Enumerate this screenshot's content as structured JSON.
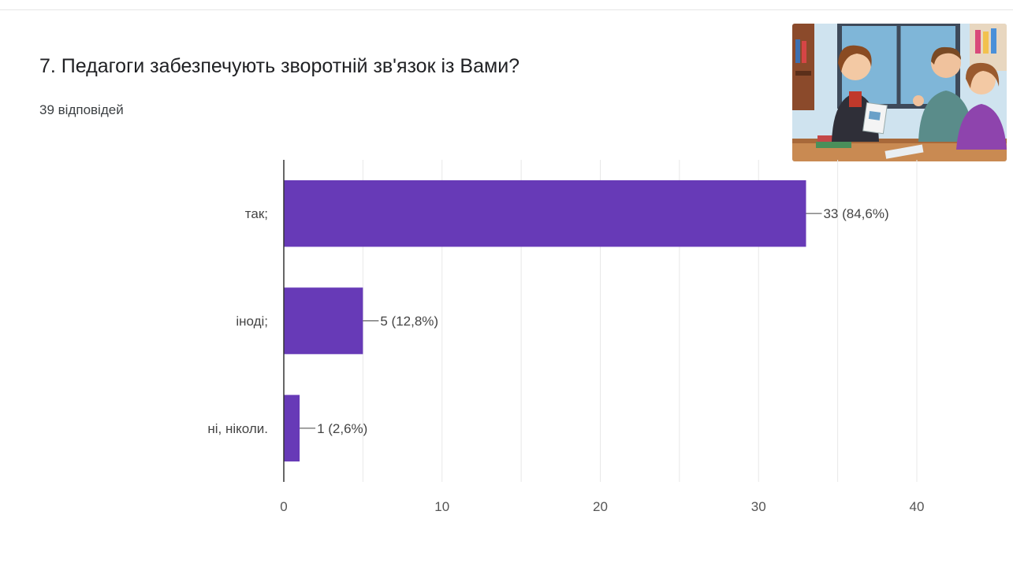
{
  "question": {
    "title": "7. Педагоги забезпечують зворотній зв'язок із Вами?",
    "responses": "39 відповідей"
  },
  "colors": {
    "bar": "#673ab7",
    "grid": "#e8e8e8",
    "axis": "#333333",
    "label": "#444444",
    "tick": "#555555"
  },
  "chart_data": {
    "type": "bar",
    "orientation": "horizontal",
    "categories": [
      "так;",
      "іноді;",
      "ні, ніколи."
    ],
    "values": [
      33,
      5,
      1
    ],
    "data_labels": [
      "33 (84,6%)",
      "5 (12,8%)",
      "1 (2,6%)"
    ],
    "xlim": [
      0,
      40
    ],
    "ticks": [
      0,
      10,
      20,
      30,
      40
    ],
    "ticks_text": [
      "0",
      "10",
      "20",
      "30",
      "40"
    ],
    "grid": true
  }
}
